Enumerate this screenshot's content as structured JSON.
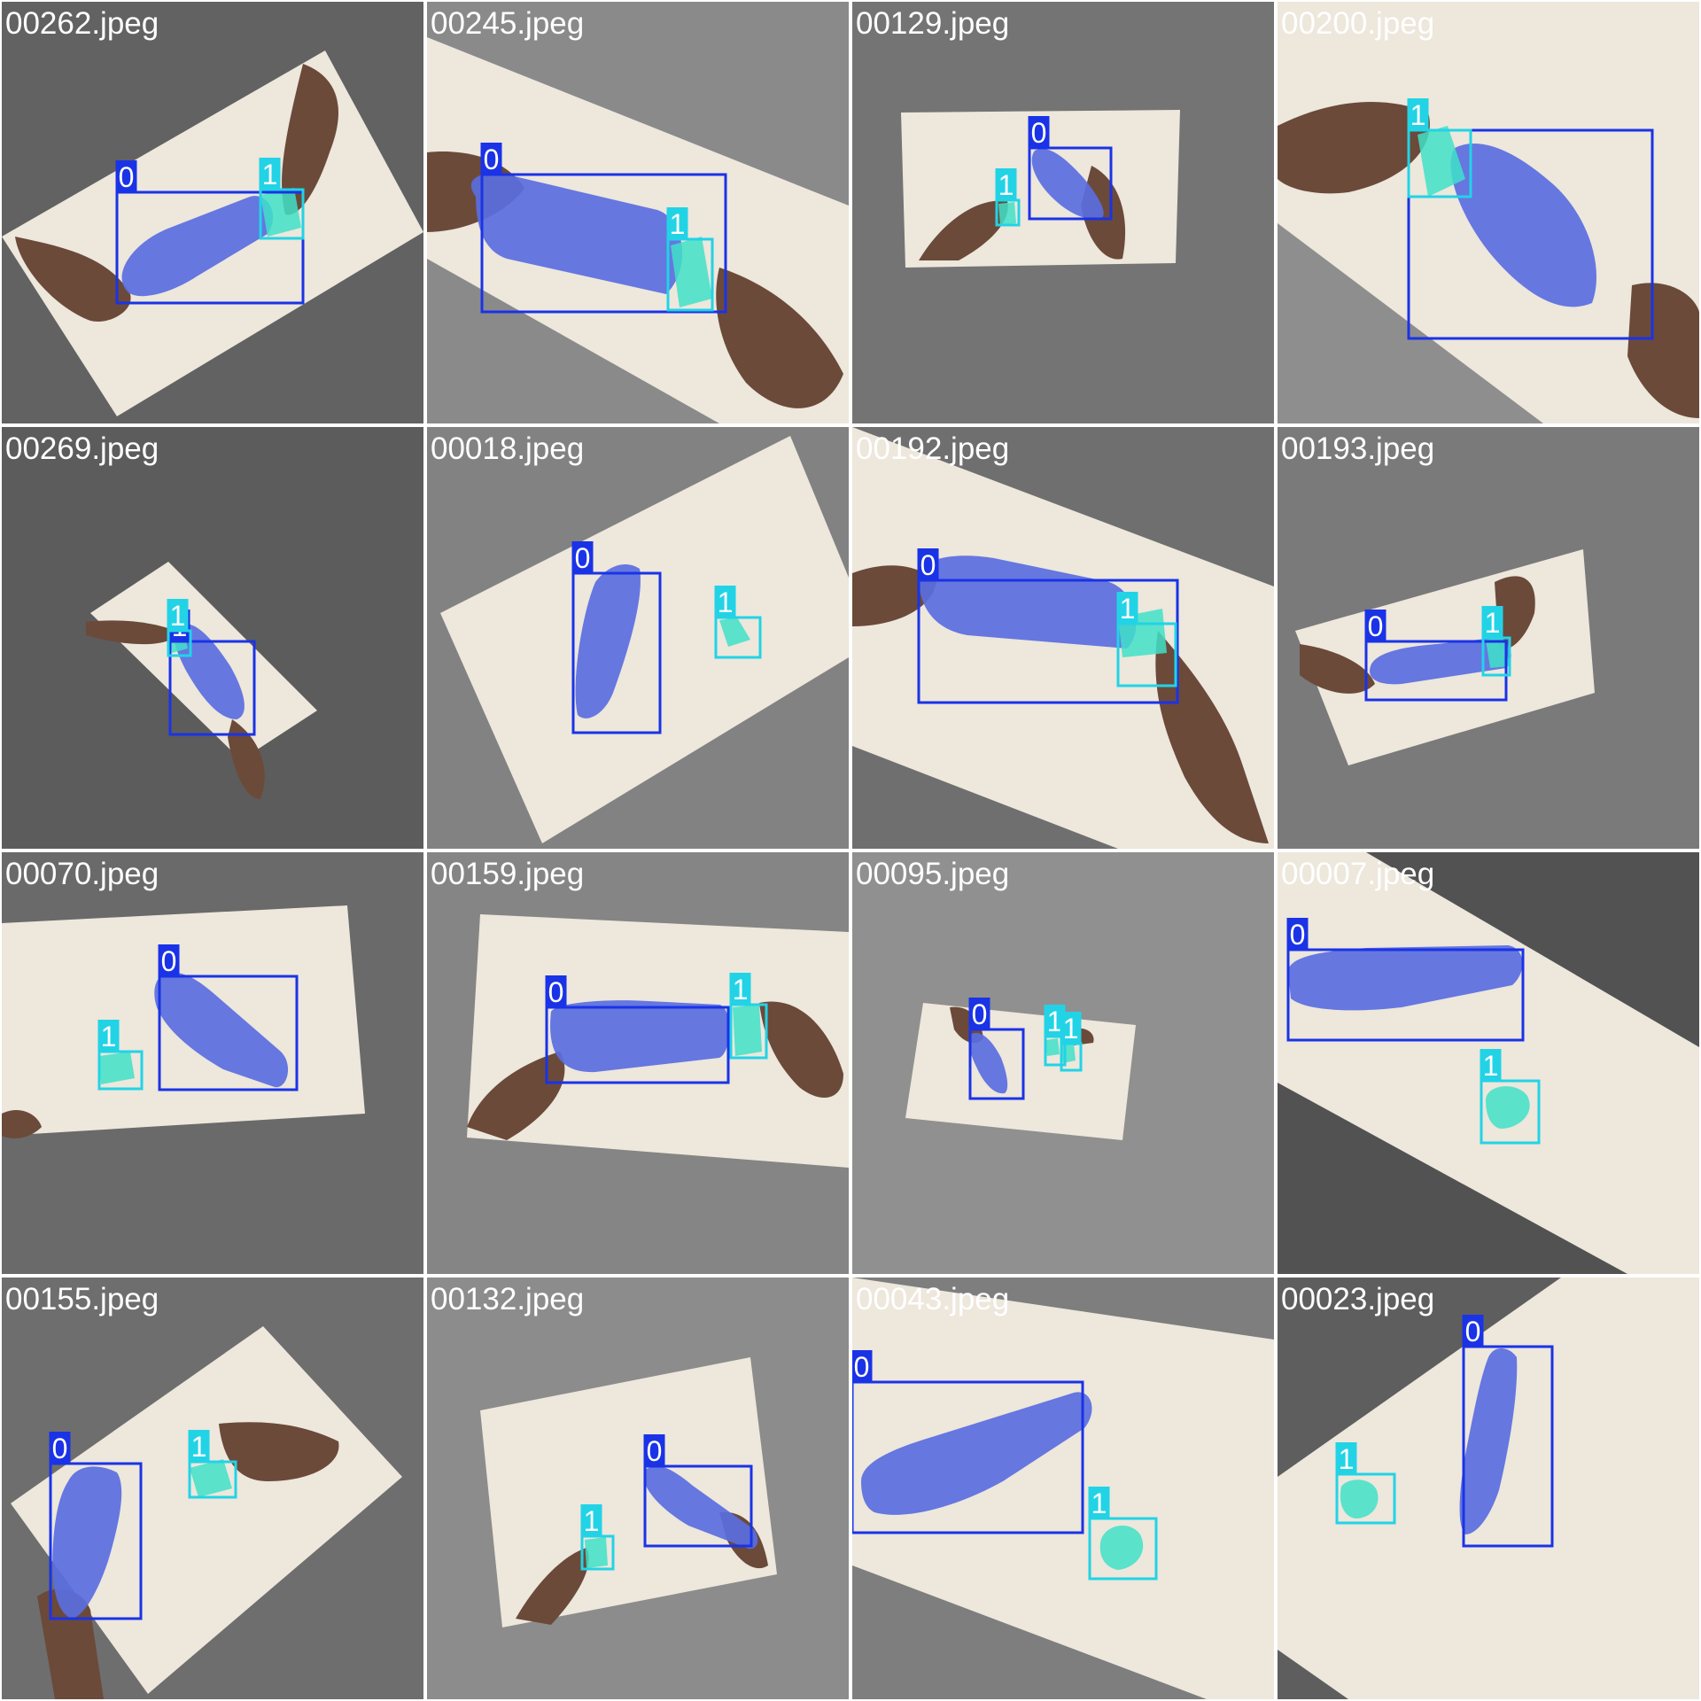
{
  "colors": {
    "class_0_box": "#1a33e6",
    "class_0_mask": "#5a6ee0",
    "class_1_box": "#22d3e6",
    "class_1_mask": "#3fe0c8",
    "label_text": "#ffffff",
    "table": "#ede7dc",
    "skin": "#6b4a3a",
    "filename_text": "#ffffff"
  },
  "tiles": [
    {
      "filename": "00262.jpeg",
      "bg": "#626262",
      "class_labels": [
        "0",
        "1"
      ]
    },
    {
      "filename": "00245.jpeg",
      "bg": "#8a8a8a",
      "class_labels": [
        "0",
        "1"
      ]
    },
    {
      "filename": "00129.jpeg",
      "bg": "#747474",
      "class_labels": [
        "0",
        "1"
      ]
    },
    {
      "filename": "00200.jpeg",
      "bg": "#8e8e8e",
      "class_labels": [
        "1"
      ]
    },
    {
      "filename": "00269.jpeg",
      "bg": "#5c5c5c",
      "class_labels": [
        "1"
      ]
    },
    {
      "filename": "00018.jpeg",
      "bg": "#828282",
      "class_labels": [
        "0",
        "1"
      ]
    },
    {
      "filename": "00192.jpeg",
      "bg": "#6f6f6f",
      "class_labels": [
        "0",
        "1"
      ]
    },
    {
      "filename": "00193.jpeg",
      "bg": "#7a7a7a",
      "class_labels": [
        "0",
        "1"
      ]
    },
    {
      "filename": "00070.jpeg",
      "bg": "#6a6a6a",
      "class_labels": [
        "0",
        "1"
      ]
    },
    {
      "filename": "00159.jpeg",
      "bg": "#858585",
      "class_labels": [
        "0",
        "1"
      ]
    },
    {
      "filename": "00095.jpeg",
      "bg": "#909090",
      "class_labels": [
        "0",
        "1",
        "1"
      ]
    },
    {
      "filename": "00007.jpeg",
      "bg": "#525252",
      "class_labels": [
        "0",
        "1"
      ]
    },
    {
      "filename": "00155.jpeg",
      "bg": "#6e6e6e",
      "class_labels": [
        "0",
        "1"
      ]
    },
    {
      "filename": "00132.jpeg",
      "bg": "#8c8c8c",
      "class_labels": [
        "0",
        "1"
      ]
    },
    {
      "filename": "00043.jpeg",
      "bg": "#7e7e7e",
      "class_labels": [
        "0",
        "1"
      ]
    },
    {
      "filename": "00023.jpeg",
      "bg": "#5e5e5e",
      "class_labels": [
        "0",
        "1"
      ]
    }
  ]
}
